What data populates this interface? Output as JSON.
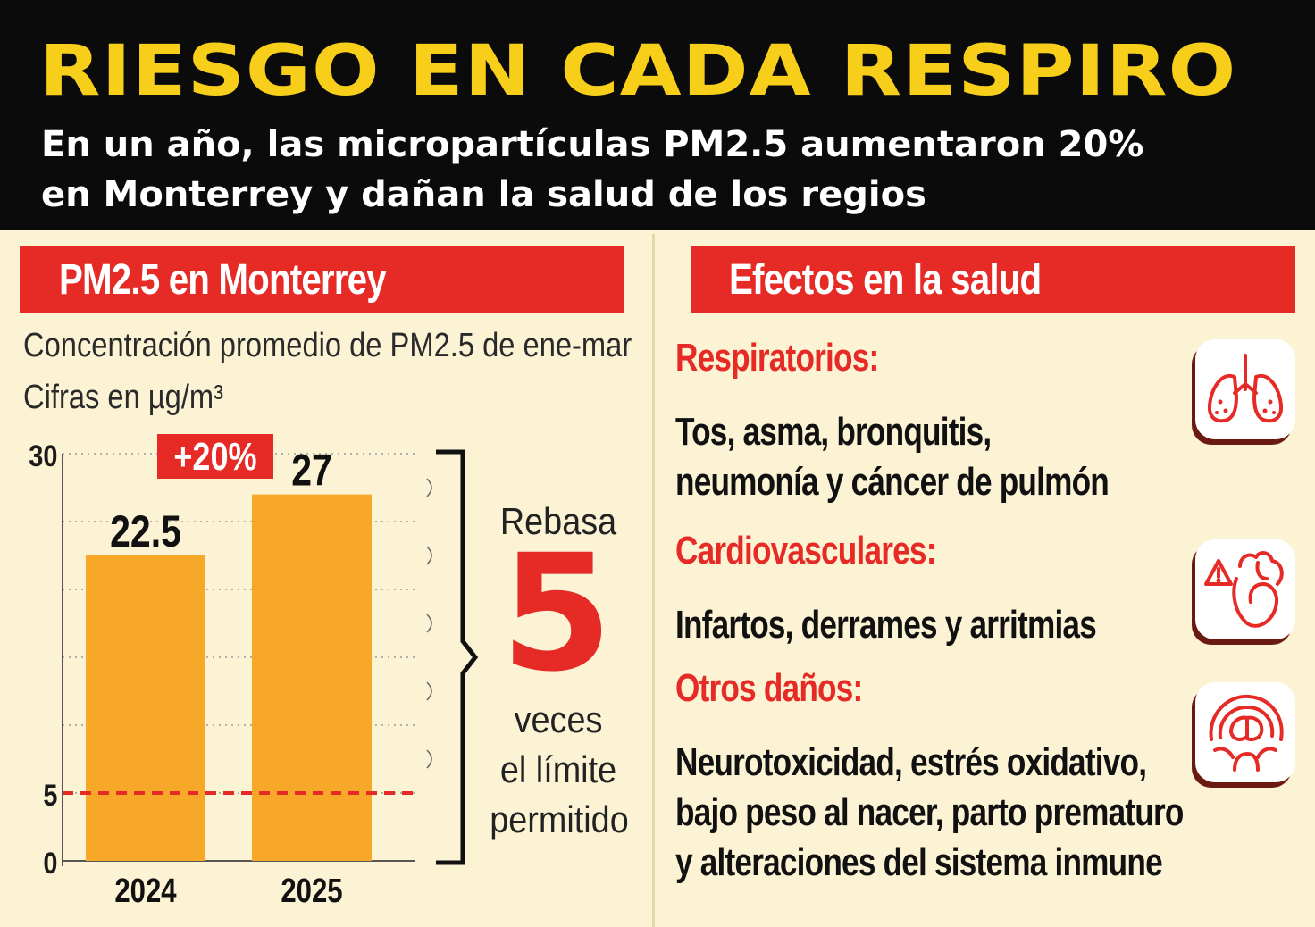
{
  "header": {
    "title": "RIESGO EN CADA RESPIRO",
    "subtitle": "En un año, las micropartículas PM2.5 aumentaron 20% en Monterrey y dañan la salud de los regios"
  },
  "left": {
    "section_title": "PM2.5 en Monterrey",
    "caption_line1": "Concentración promedio de PM2.5 de ene-mar",
    "caption_line2": "Cifras en µg/m³",
    "increase_badge": "+20%",
    "exceed_top": "Rebasa",
    "exceed_number": "5",
    "exceed_line1": "veces",
    "exceed_line2": "el límite",
    "exceed_line3": "permitido"
  },
  "right": {
    "section_title": "Efectos en la salud",
    "effects": [
      {
        "category": "Respiratorios:",
        "description": "Tos, asma, bronquitis,\nneumonía y cáncer de pulmón",
        "icon": "lungs-icon"
      },
      {
        "category": "Cardiovasculares:",
        "description": "Infartos, derrames y arritmias",
        "icon": "heart-warning-icon"
      },
      {
        "category": "Otros daños:",
        "description": "Neurotoxicidad, estrés oxidativo,\nbajo peso al nacer, parto prematuro\ny alteraciones del sistema inmune",
        "icon": "head-brain-icon"
      }
    ]
  },
  "colors": {
    "header_bg": "#0b0b0b",
    "title_yellow": "#f7cf1a",
    "accent_red": "#e62a26",
    "bar_orange": "#f7a828",
    "background": "#fbf3d4"
  },
  "chart_data": {
    "type": "bar",
    "categories": [
      "2024",
      "2025"
    ],
    "values": [
      22.5,
      27
    ],
    "data_labels": [
      "22.5",
      "27"
    ],
    "ylim": [
      0,
      30
    ],
    "yticks": [
      0,
      5,
      30
    ],
    "reference_line": {
      "value": 5,
      "style": "dashed",
      "color": "#e62a26"
    },
    "grid": "dotted horizontal",
    "title": "PM2.5 en Monterrey",
    "xlabel": "",
    "ylabel": ""
  }
}
